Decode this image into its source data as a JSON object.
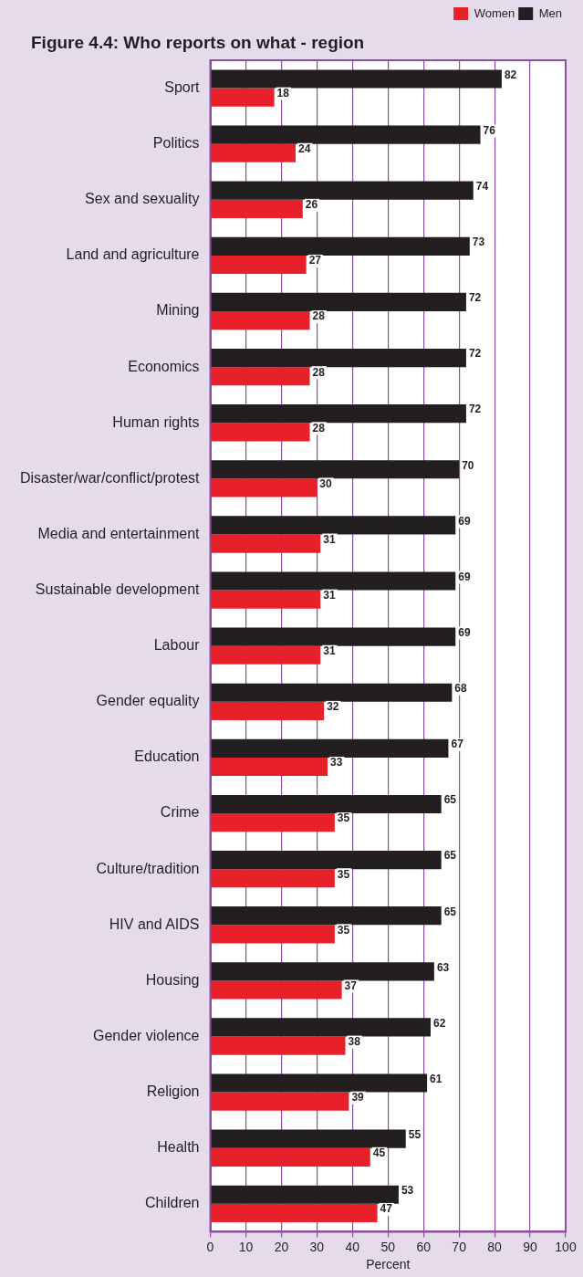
{
  "chart_data": {
    "type": "bar",
    "orientation": "horizontal",
    "title": "Figure 4.4: Who reports on what - region",
    "xlabel": "Percent",
    "categories": [
      "Sport",
      "Politics",
      "Sex and sexuality",
      "Land and agriculture",
      "Mining",
      "Economics",
      "Human rights",
      "Disaster/war/conflict/protest",
      "Media and entertainment",
      "Sustainable development",
      "Labour",
      "Gender equality",
      "Education",
      "Crime",
      "Culture/tradition",
      "HIV and AIDS",
      "Housing",
      "Gender violence",
      "Religion",
      "Health",
      "Children"
    ],
    "series": [
      {
        "name": "Women",
        "color": "#e8202a",
        "values": [
          18,
          24,
          26,
          27,
          28,
          28,
          28,
          30,
          31,
          31,
          31,
          32,
          33,
          35,
          35,
          35,
          37,
          38,
          39,
          45,
          47
        ]
      },
      {
        "name": "Men",
        "color": "#231f20",
        "values": [
          82,
          76,
          74,
          73,
          72,
          72,
          72,
          70,
          69,
          69,
          69,
          68,
          67,
          65,
          65,
          65,
          63,
          62,
          61,
          55,
          53
        ]
      }
    ],
    "xlim": [
      0,
      100
    ],
    "xticks": [
      0,
      10,
      20,
      30,
      40,
      50,
      60,
      70,
      80,
      90,
      100
    ],
    "grid": "x",
    "legend": "top right",
    "data_labels": true
  }
}
